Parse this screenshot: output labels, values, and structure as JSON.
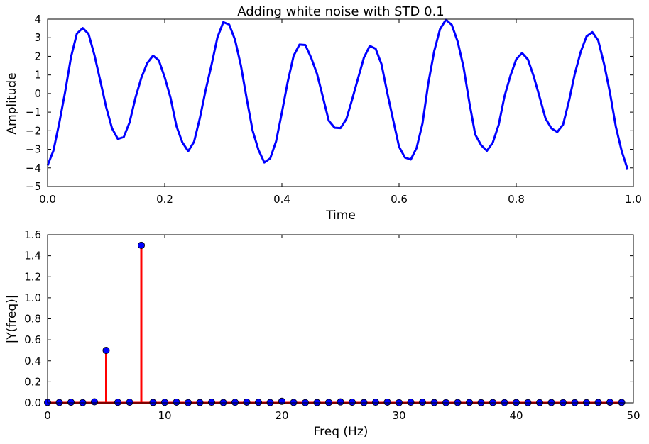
{
  "chart_data": [
    {
      "type": "line",
      "title": "Adding white noise with STD 0.1",
      "xlabel": "Time",
      "ylabel": "Amplitude",
      "xlim": [
        0.0,
        1.0
      ],
      "ylim": [
        -5,
        4
      ],
      "xticks": [
        "0.0",
        "0.2",
        "0.4",
        "0.6",
        "0.8",
        "1.0"
      ],
      "yticks": [
        "4",
        "3",
        "2",
        "1",
        "0",
        "−1",
        "−2",
        "−3",
        "−4",
        "−5"
      ],
      "grid": false,
      "series": [
        {
          "color": "#0000ff",
          "x": [
            0.0,
            0.01,
            0.02,
            0.03,
            0.04,
            0.05,
            0.06,
            0.07,
            0.08,
            0.09,
            0.1,
            0.11,
            0.12,
            0.13,
            0.14,
            0.15,
            0.16,
            0.17,
            0.18,
            0.19,
            0.2,
            0.21,
            0.22,
            0.23,
            0.24,
            0.25,
            0.26,
            0.27,
            0.28,
            0.29,
            0.3,
            0.31,
            0.32,
            0.33,
            0.34,
            0.35,
            0.36,
            0.37,
            0.38,
            0.39,
            0.4,
            0.41,
            0.42,
            0.43,
            0.44,
            0.45,
            0.46,
            0.47,
            0.48,
            0.49,
            0.5,
            0.51,
            0.52,
            0.53,
            0.54,
            0.55,
            0.56,
            0.57,
            0.58,
            0.59,
            0.6,
            0.61,
            0.62,
            0.63,
            0.64,
            0.65,
            0.66,
            0.67,
            0.68,
            0.69,
            0.7,
            0.71,
            0.72,
            0.73,
            0.74,
            0.75,
            0.76,
            0.77,
            0.78,
            0.79,
            0.8,
            0.81,
            0.82,
            0.83,
            0.84,
            0.85,
            0.86,
            0.87,
            0.88,
            0.89,
            0.9,
            0.91,
            0.92,
            0.93,
            0.94,
            0.95,
            0.96,
            0.97,
            0.98,
            0.99
          ],
          "y": [
            -3.87,
            -3.07,
            -1.58,
            0.09,
            1.96,
            3.22,
            3.52,
            3.2,
            2.07,
            0.69,
            -0.73,
            -1.87,
            -2.44,
            -2.34,
            -1.55,
            -0.23,
            0.84,
            1.63,
            2.04,
            1.78,
            0.87,
            -0.24,
            -1.75,
            -2.62,
            -3.1,
            -2.6,
            -1.32,
            0.2,
            1.56,
            3.02,
            3.84,
            3.71,
            2.89,
            1.51,
            -0.29,
            -1.99,
            -3.03,
            -3.71,
            -3.49,
            -2.58,
            -1.02,
            0.64,
            2.03,
            2.63,
            2.61,
            1.92,
            1.06,
            -0.19,
            -1.46,
            -1.84,
            -1.86,
            -1.38,
            -0.31,
            0.82,
            1.93,
            2.56,
            2.41,
            1.58,
            0.02,
            -1.43,
            -2.86,
            -3.44,
            -3.55,
            -2.92,
            -1.61,
            0.57,
            2.28,
            3.47,
            3.97,
            3.69,
            2.8,
            1.43,
            -0.48,
            -2.2,
            -2.77,
            -3.08,
            -2.64,
            -1.69,
            -0.15,
            0.95,
            1.84,
            2.18,
            1.83,
            0.91,
            -0.2,
            -1.34,
            -1.87,
            -2.07,
            -1.67,
            -0.41,
            1.06,
            2.23,
            3.07,
            3.3,
            2.85,
            1.59,
            0.05,
            -1.77,
            -3.09,
            -4.06
          ]
        }
      ]
    },
    {
      "type": "stem",
      "title": "",
      "xlabel": "Freq (Hz)",
      "ylabel": "|Y(freq)|",
      "xlim": [
        0,
        50
      ],
      "ylim": [
        0.0,
        1.6
      ],
      "xticks": [
        "0",
        "10",
        "20",
        "30",
        "40",
        "50"
      ],
      "yticks": [
        "1.6",
        "1.4",
        "1.2",
        "1.0",
        "0.8",
        "0.6",
        "0.4",
        "0.2",
        "0.0"
      ],
      "grid": false,
      "stem_color": "#ff0000",
      "marker_color": "#0000ff",
      "series": [
        {
          "x": [
            0,
            1,
            2,
            3,
            4,
            5,
            6,
            7,
            8,
            9,
            10,
            11,
            12,
            13,
            14,
            15,
            16,
            17,
            18,
            19,
            20,
            21,
            22,
            23,
            24,
            25,
            26,
            27,
            28,
            29,
            30,
            31,
            32,
            33,
            34,
            35,
            36,
            37,
            38,
            39,
            40,
            41,
            42,
            43,
            44,
            45,
            46,
            47,
            48,
            49
          ],
          "y": [
            0.004,
            0.003,
            0.006,
            0.002,
            0.01,
            0.5,
            0.005,
            0.006,
            1.5,
            0.004,
            0.005,
            0.007,
            0.002,
            0.003,
            0.006,
            0.003,
            0.005,
            0.007,
            0.005,
            0.003,
            0.015,
            0.004,
            0.002,
            0.003,
            0.004,
            0.009,
            0.006,
            0.003,
            0.006,
            0.007,
            0.002,
            0.006,
            0.006,
            0.003,
            0.002,
            0.003,
            0.004,
            0.002,
            0.003,
            0.002,
            0.003,
            0.002,
            0.002,
            0.003,
            0.002,
            0.002,
            0.002,
            0.004,
            0.006,
            0.004
          ]
        }
      ]
    }
  ]
}
